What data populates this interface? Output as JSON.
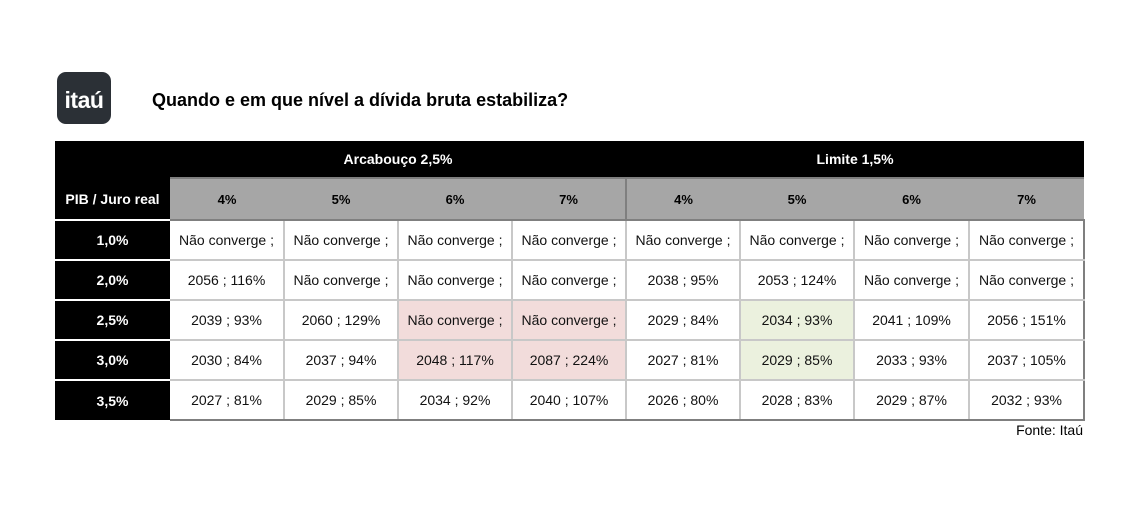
{
  "logo": {
    "text": "itaú"
  },
  "title": "Quando e em que nível a dívida bruta estabiliza?",
  "table": {
    "corner_label": "PIB / Juro real",
    "groups": [
      {
        "label": "Arcabouço 2,5%"
      },
      {
        "label": "Limite 1,5%"
      }
    ],
    "columns": [
      "4%",
      "5%",
      "6%",
      "7%",
      "4%",
      "5%",
      "6%",
      "7%"
    ],
    "rows": [
      {
        "label": "1,0%",
        "cells": [
          "Não converge ;",
          "Não converge ;",
          "Não converge ;",
          "Não converge ;",
          "Não converge ;",
          "Não converge ;",
          "Não converge ;",
          "Não converge ;"
        ]
      },
      {
        "label": "2,0%",
        "cells": [
          "2056 ; 116%",
          "Não converge ;",
          "Não converge ;",
          "Não converge ;",
          "2038 ; 95%",
          "2053 ; 124%",
          "Não converge ;",
          "Não converge ;"
        ]
      },
      {
        "label": "2,5%",
        "cells": [
          "2039 ; 93%",
          "2060 ; 129%",
          "Não converge ;",
          "Não converge ;",
          "2029 ; 84%",
          "2034 ; 93%",
          "2041 ; 109%",
          "2056 ; 151%"
        ]
      },
      {
        "label": "3,0%",
        "cells": [
          "2030 ; 84%",
          "2037 ; 94%",
          "2048 ; 117%",
          "2087 ; 224%",
          "2027 ; 81%",
          "2029 ; 85%",
          "2033 ; 93%",
          "2037 ; 105%"
        ]
      },
      {
        "label": "3,5%",
        "cells": [
          "2027 ; 81%",
          "2029 ; 85%",
          "2034 ; 92%",
          "2040 ; 107%",
          "2026 ; 80%",
          "2028 ; 83%",
          "2029 ; 87%",
          "2032 ; 93%"
        ]
      }
    ],
    "highlight_colors": {
      "pink": "#f2dcdb",
      "green": "#ebf1de"
    }
  },
  "source": "Fonte: Itaú"
}
